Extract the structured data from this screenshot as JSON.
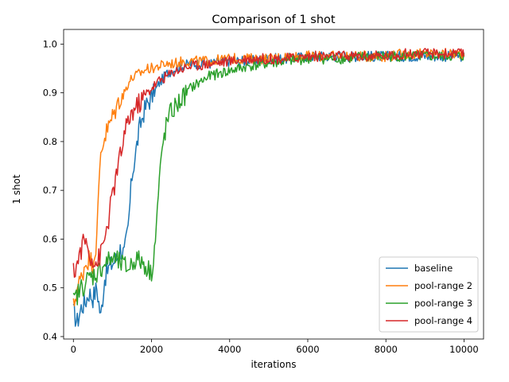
{
  "chart_data": {
    "type": "line",
    "title": "Comparison of 1 shot",
    "xlabel": "iterations",
    "ylabel": "1 shot",
    "xlim": [
      -250,
      10500
    ],
    "ylim": [
      0.395,
      1.03
    ],
    "xticks": [
      0,
      2000,
      4000,
      6000,
      8000,
      10000
    ],
    "yticks": [
      0.4,
      0.5,
      0.6,
      0.7,
      0.8,
      0.9,
      1.0
    ],
    "xtick_labels": [
      "0",
      "2000",
      "4000",
      "6000",
      "8000",
      "10000"
    ],
    "ytick_labels": [
      "0.4",
      "0.5",
      "0.6",
      "0.7",
      "0.8",
      "0.9",
      "1.0"
    ],
    "grid": false,
    "legend_position": "lower-right",
    "series": [
      {
        "name": "baseline",
        "color": "#1f77b4",
        "x": [
          0,
          100,
          200,
          300,
          400,
          500,
          600,
          700,
          800,
          900,
          1000,
          1100,
          1200,
          1300,
          1400,
          1500,
          1600,
          1700,
          1800,
          1900,
          2000,
          2200,
          2400,
          2600,
          2800,
          3000,
          3500,
          4000,
          4500,
          5000,
          5500,
          6000,
          6500,
          7000,
          7500,
          8000,
          8500,
          9000,
          9500,
          10000
        ],
        "y": [
          0.45,
          0.43,
          0.46,
          0.47,
          0.49,
          0.48,
          0.5,
          0.44,
          0.52,
          0.54,
          0.55,
          0.56,
          0.58,
          0.57,
          0.62,
          0.73,
          0.78,
          0.83,
          0.86,
          0.88,
          0.89,
          0.92,
          0.94,
          0.95,
          0.955,
          0.96,
          0.96,
          0.965,
          0.965,
          0.97,
          0.97,
          0.975,
          0.975,
          0.975,
          0.975,
          0.975,
          0.975,
          0.975,
          0.975,
          0.975
        ]
      },
      {
        "name": "pool-range 2",
        "color": "#ff7f0e",
        "x": [
          0,
          100,
          200,
          300,
          400,
          500,
          600,
          650,
          700,
          800,
          900,
          1000,
          1100,
          1200,
          1300,
          1400,
          1500,
          1600,
          1700,
          1800,
          1900,
          2000,
          2200,
          2400,
          2600,
          2800,
          3000,
          3500,
          4000,
          4500,
          5000,
          5500,
          6000,
          6500,
          7000,
          7500,
          8000,
          8500,
          9000,
          9500,
          10000
        ],
        "y": [
          0.46,
          0.5,
          0.52,
          0.55,
          0.56,
          0.55,
          0.6,
          0.7,
          0.78,
          0.81,
          0.83,
          0.85,
          0.87,
          0.89,
          0.9,
          0.92,
          0.93,
          0.935,
          0.94,
          0.945,
          0.95,
          0.95,
          0.955,
          0.96,
          0.96,
          0.965,
          0.965,
          0.965,
          0.97,
          0.97,
          0.97,
          0.975,
          0.975,
          0.975,
          0.975,
          0.975,
          0.975,
          0.98,
          0.98,
          0.98,
          0.98
        ]
      },
      {
        "name": "pool-range 3",
        "color": "#2ca02c",
        "x": [
          0,
          200,
          400,
          600,
          800,
          1000,
          1200,
          1400,
          1600,
          1800,
          2000,
          2100,
          2200,
          2300,
          2400,
          2500,
          2600,
          2800,
          3000,
          3200,
          3500,
          4000,
          4500,
          5000,
          5500,
          6000,
          6500,
          7000,
          7500,
          8000,
          8500,
          9000,
          9500,
          10000
        ],
        "y": [
          0.47,
          0.5,
          0.52,
          0.53,
          0.55,
          0.56,
          0.55,
          0.54,
          0.56,
          0.55,
          0.53,
          0.6,
          0.72,
          0.8,
          0.84,
          0.86,
          0.87,
          0.89,
          0.91,
          0.92,
          0.935,
          0.945,
          0.955,
          0.96,
          0.965,
          0.97,
          0.97,
          0.97,
          0.975,
          0.975,
          0.975,
          0.975,
          0.975,
          0.975
        ]
      },
      {
        "name": "pool-range 4",
        "color": "#d62728",
        "x": [
          0,
          100,
          200,
          300,
          400,
          500,
          600,
          700,
          800,
          900,
          1000,
          1100,
          1200,
          1300,
          1400,
          1500,
          1600,
          1700,
          1800,
          1900,
          2000,
          2200,
          2400,
          2600,
          2800,
          3000,
          3500,
          4000,
          4500,
          5000,
          5500,
          6000,
          6500,
          7000,
          7500,
          8000,
          8500,
          9000,
          9500,
          10000
        ],
        "y": [
          0.53,
          0.55,
          0.58,
          0.6,
          0.57,
          0.56,
          0.55,
          0.57,
          0.6,
          0.64,
          0.69,
          0.73,
          0.77,
          0.81,
          0.84,
          0.86,
          0.87,
          0.88,
          0.89,
          0.9,
          0.91,
          0.925,
          0.935,
          0.945,
          0.95,
          0.955,
          0.96,
          0.965,
          0.97,
          0.97,
          0.97,
          0.975,
          0.975,
          0.975,
          0.975,
          0.975,
          0.98,
          0.98,
          0.98,
          0.98
        ]
      }
    ]
  }
}
